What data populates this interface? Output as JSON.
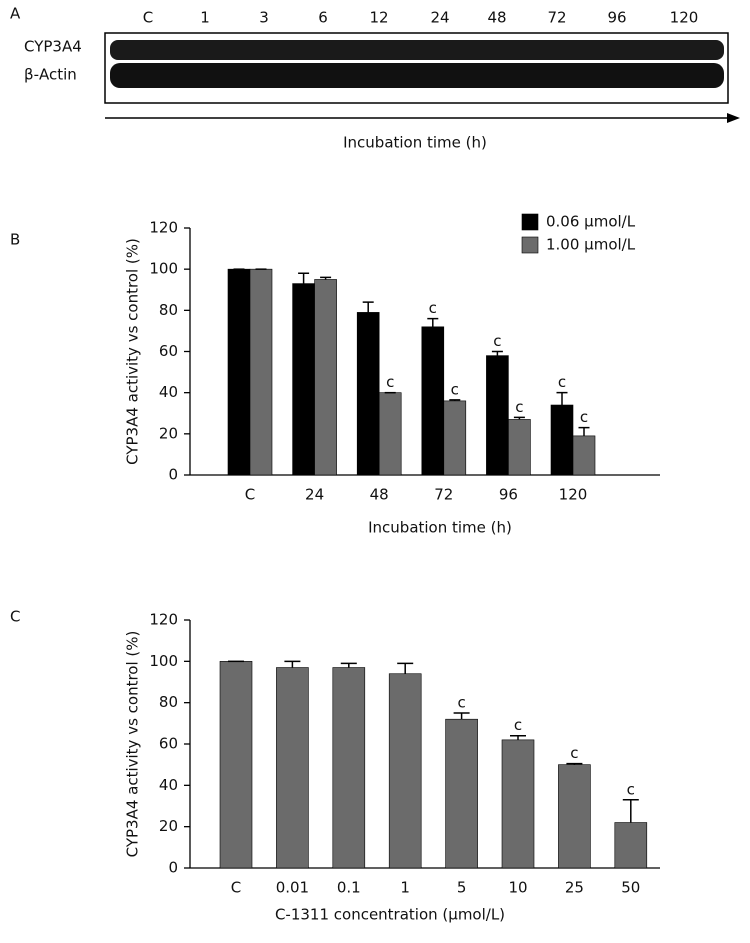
{
  "blot": {
    "panel": "A",
    "lanes": [
      "C",
      "1",
      "3",
      "6",
      "12",
      "24",
      "48",
      "72",
      "96",
      "120"
    ],
    "rows": [
      "CYP3A4",
      "β-Actin"
    ],
    "xlabel": "Incubation time (h)"
  },
  "chart_data": [
    {
      "type": "bar",
      "panel": "B",
      "ylabel": "CYP3A4 activity vs control (%)",
      "xlabel": "Incubation time (h)",
      "categories": [
        "C",
        "24",
        "48",
        "72",
        "96",
        "120"
      ],
      "series": [
        {
          "name": "0.06 µmol/L",
          "color": "#000000",
          "values": [
            100,
            93,
            79,
            72,
            58,
            34
          ],
          "errors": [
            0,
            5,
            5,
            4,
            2,
            6
          ],
          "annotations": [
            null,
            null,
            null,
            "c",
            "c",
            "c"
          ]
        },
        {
          "name": "1.00 µmol/L",
          "color": "#6b6b6b",
          "values": [
            100,
            95,
            40,
            36,
            27,
            19
          ],
          "errors": [
            0,
            1,
            0,
            0.5,
            1,
            4
          ],
          "annotations": [
            null,
            null,
            "c",
            "c",
            "c",
            "c"
          ]
        }
      ],
      "ylim": [
        0,
        120
      ],
      "yticks": [
        0,
        20,
        40,
        60,
        80,
        100,
        120
      ],
      "legend": "top-right"
    },
    {
      "type": "bar",
      "panel": "C",
      "ylabel": "CYP3A4 activity vs control (%)",
      "xlabel": "C-1311 concentration (µmol/L)",
      "categories": [
        "C",
        "0.01",
        "0.1",
        "1",
        "5",
        "10",
        "25",
        "50"
      ],
      "series": [
        {
          "color": "#6b6b6b",
          "values": [
            100,
            97,
            97,
            94,
            72,
            62,
            50,
            22
          ],
          "errors": [
            0,
            3,
            2,
            5,
            3,
            2,
            0.5,
            11
          ],
          "annotations": [
            null,
            null,
            null,
            null,
            "c",
            "c",
            "c",
            "c"
          ]
        }
      ],
      "ylim": [
        0,
        120
      ],
      "yticks": [
        0,
        20,
        40,
        60,
        80,
        100,
        120
      ]
    }
  ]
}
